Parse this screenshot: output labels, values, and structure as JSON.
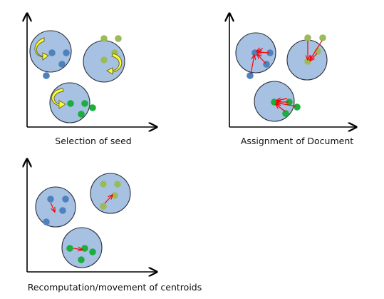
{
  "captions": {
    "panel1": "Selection of seed",
    "panel2": "Assignment of Document",
    "panel3": "Recomputation/movement of centroids"
  },
  "colors": {
    "cluster_fill": "#a7c1e3",
    "blue_point": "#4f81bd",
    "olive_point": "#9bbb59",
    "green_point": "#1aaf3c",
    "arrow_red": "#ff0000",
    "seed_arrow": "#ffff33"
  }
}
